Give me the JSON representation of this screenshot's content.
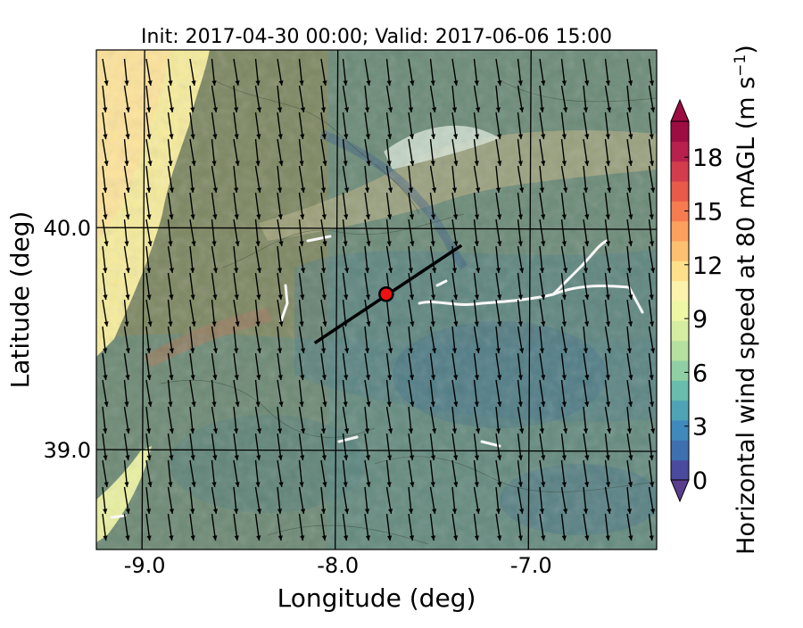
{
  "title": "Init: 2017-04-30 00:00; Valid: 2017-06-06 15:00",
  "map": {
    "xlabel": "Longitude (deg)",
    "ylabel": "Latitude (deg)",
    "xlim": [
      -9.25,
      -6.35
    ],
    "ylim": [
      38.55,
      40.8
    ],
    "x_ticks": [
      {
        "value": -9.0,
        "label": "-9.0"
      },
      {
        "value": -8.0,
        "label": "-8.0"
      },
      {
        "value": -7.0,
        "label": "-7.0"
      }
    ],
    "y_ticks": [
      {
        "value": 40.0,
        "label": "40.0"
      },
      {
        "value": 39.0,
        "label": "39.0"
      }
    ],
    "grid": true,
    "site_marker": {
      "lon": -7.75,
      "lat": 39.7,
      "color": "#ee1111"
    },
    "transect_line": {
      "start": [
        -8.12,
        39.48
      ],
      "end": [
        -7.36,
        39.92
      ]
    },
    "coastline_color": "#ffffff"
  },
  "colorbar": {
    "label": "Horizontal wind speed at 80 mAGL (m s",
    "label_exponent": "−1",
    "label_close": ")",
    "min": 0,
    "max": 20,
    "tick_values": [
      0,
      3,
      6,
      9,
      12,
      15,
      18
    ],
    "tick_labels": [
      "0",
      "3",
      "6",
      "9",
      "12",
      "15",
      "18"
    ],
    "extend": "both",
    "colors": [
      "#4a4a9e",
      "#3e6fb0",
      "#3f89bd",
      "#4ea3b5",
      "#68bdac",
      "#8fcfa3",
      "#b5e0a0",
      "#d5eda0",
      "#edf7a4",
      "#fcf2ab",
      "#fee08b",
      "#fdc070",
      "#fca05e",
      "#f67c4f",
      "#e85a49",
      "#d33c4d",
      "#b8204d",
      "#9e0d42"
    ]
  },
  "wind": {
    "direction": "north-northwesterly",
    "arrow_color": "#000000"
  }
}
